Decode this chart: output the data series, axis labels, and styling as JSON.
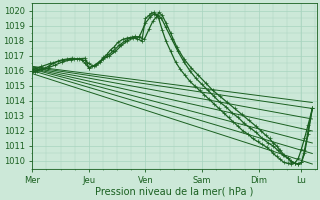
{
  "xlabel": "Pression niveau de la mer( hPa )",
  "xlim": [
    0,
    4.72
  ],
  "ylim": [
    1009.5,
    1020.5
  ],
  "yticks": [
    1010,
    1011,
    1012,
    1013,
    1014,
    1015,
    1016,
    1017,
    1018,
    1019,
    1020
  ],
  "xtick_labels": [
    "Mer",
    "Jeu",
    "Ven",
    "Sam",
    "Dim",
    "Lu"
  ],
  "xtick_positions": [
    0.0,
    0.94,
    1.88,
    2.82,
    3.76,
    4.47
  ],
  "bg_color": "#cce8d8",
  "grid_color": "#a8d4bf",
  "line_color": "#1a6020",
  "fan_lines": [
    {
      "x0": 0.02,
      "y0": 1015.8,
      "x1": 4.65,
      "y1": 1009.8
    },
    {
      "x0": 0.02,
      "y0": 1016.0,
      "x1": 4.65,
      "y1": 1010.5
    },
    {
      "x0": 0.02,
      "y0": 1016.1,
      "x1": 4.65,
      "y1": 1011.2
    },
    {
      "x0": 0.02,
      "y0": 1016.15,
      "x1": 4.65,
      "y1": 1012.0
    },
    {
      "x0": 0.02,
      "y0": 1016.2,
      "x1": 4.65,
      "y1": 1012.8
    },
    {
      "x0": 0.02,
      "y0": 1016.25,
      "x1": 4.65,
      "y1": 1013.5
    },
    {
      "x0": 0.02,
      "y0": 1016.3,
      "x1": 4.65,
      "y1": 1013.9
    }
  ],
  "main_line": {
    "x": [
      0.0,
      0.04,
      0.08,
      0.12,
      0.16,
      0.22,
      0.28,
      0.35,
      0.42,
      0.5,
      0.58,
      0.66,
      0.74,
      0.82,
      0.88,
      0.94,
      1.0,
      1.06,
      1.12,
      1.18,
      1.24,
      1.3,
      1.36,
      1.42,
      1.5,
      1.58,
      1.66,
      1.74,
      1.82,
      1.88,
      1.94,
      1.98,
      2.02,
      2.06,
      2.1,
      2.16,
      2.22,
      2.3,
      2.38,
      2.46,
      2.54,
      2.62,
      2.7,
      2.78,
      2.86,
      2.94,
      3.02,
      3.1,
      3.18,
      3.26,
      3.34,
      3.42,
      3.5,
      3.58,
      3.66,
      3.74,
      3.82,
      3.9,
      3.96,
      4.0,
      4.06,
      4.12,
      4.18,
      4.24,
      4.3,
      4.36,
      4.42,
      4.47,
      4.52,
      4.58,
      4.65
    ],
    "y": [
      1015.9,
      1015.95,
      1016.0,
      1016.1,
      1016.15,
      1016.2,
      1016.35,
      1016.5,
      1016.65,
      1016.75,
      1016.8,
      1016.85,
      1016.8,
      1016.75,
      1016.5,
      1016.2,
      1016.3,
      1016.4,
      1016.6,
      1016.9,
      1017.1,
      1017.4,
      1017.6,
      1017.9,
      1018.1,
      1018.2,
      1018.25,
      1018.15,
      1018.0,
      1019.5,
      1019.7,
      1019.85,
      1019.9,
      1019.75,
      1019.5,
      1018.7,
      1018.0,
      1017.3,
      1016.6,
      1016.1,
      1015.7,
      1015.3,
      1015.0,
      1014.7,
      1014.4,
      1014.1,
      1013.8,
      1013.5,
      1013.2,
      1012.9,
      1012.6,
      1012.3,
      1012.0,
      1011.8,
      1011.5,
      1011.3,
      1011.1,
      1010.9,
      1010.7,
      1010.5,
      1010.3,
      1010.1,
      1009.9,
      1009.85,
      1009.8,
      1009.85,
      1010.2,
      1010.8,
      1011.5,
      1012.4,
      1013.5
    ]
  },
  "second_line": {
    "x": [
      0.02,
      0.08,
      0.16,
      0.26,
      0.38,
      0.5,
      0.64,
      0.78,
      0.88,
      0.94,
      1.02,
      1.1,
      1.18,
      1.28,
      1.38,
      1.48,
      1.58,
      1.68,
      1.78,
      1.88,
      1.96,
      2.02,
      2.08,
      2.14,
      2.22,
      2.32,
      2.42,
      2.52,
      2.62,
      2.72,
      2.82,
      2.92,
      3.02,
      3.12,
      3.22,
      3.32,
      3.42,
      3.52,
      3.62,
      3.72,
      3.82,
      3.92,
      4.0,
      4.08,
      4.16,
      4.24,
      4.3,
      4.36,
      4.42,
      4.47,
      4.52,
      4.58,
      4.65
    ],
    "y": [
      1016.0,
      1016.05,
      1016.1,
      1016.2,
      1016.4,
      1016.6,
      1016.75,
      1016.8,
      1016.7,
      1016.5,
      1016.3,
      1016.5,
      1016.8,
      1017.0,
      1017.3,
      1017.7,
      1018.0,
      1018.2,
      1018.3,
      1019.2,
      1019.6,
      1019.8,
      1019.7,
      1019.55,
      1018.9,
      1018.1,
      1017.3,
      1016.6,
      1016.0,
      1015.5,
      1015.1,
      1014.7,
      1014.3,
      1013.9,
      1013.6,
      1013.2,
      1012.9,
      1012.5,
      1012.2,
      1011.9,
      1011.5,
      1011.2,
      1011.0,
      1010.7,
      1010.4,
      1010.2,
      1009.95,
      1009.85,
      1009.8,
      1009.9,
      1010.5,
      1011.8,
      1013.5
    ]
  },
  "top_line": {
    "x": [
      0.02,
      0.15,
      0.3,
      0.5,
      0.7,
      0.88,
      0.94,
      1.04,
      1.14,
      1.24,
      1.34,
      1.44,
      1.54,
      1.62,
      1.7,
      1.78,
      1.86,
      1.94,
      2.0,
      2.06,
      2.1,
      2.16,
      2.22,
      2.3,
      2.4,
      2.52,
      2.64,
      2.76,
      2.88,
      3.0,
      3.12,
      3.24,
      3.36,
      3.48,
      3.6,
      3.72,
      3.8,
      3.88,
      3.94,
      4.0,
      4.06,
      4.12,
      4.18,
      4.24,
      4.3,
      4.36,
      4.42,
      4.47,
      4.52,
      4.58,
      4.65
    ],
    "y": [
      1016.1,
      1016.3,
      1016.5,
      1016.7,
      1016.8,
      1016.85,
      1016.2,
      1016.4,
      1016.7,
      1017.0,
      1017.3,
      1017.7,
      1018.0,
      1018.2,
      1018.3,
      1018.25,
      1018.1,
      1018.8,
      1019.3,
      1019.6,
      1019.9,
      1019.7,
      1019.2,
      1018.5,
      1017.6,
      1016.8,
      1016.2,
      1015.7,
      1015.2,
      1014.7,
      1014.3,
      1013.9,
      1013.5,
      1013.1,
      1012.7,
      1012.3,
      1012.0,
      1011.7,
      1011.5,
      1011.2,
      1011.0,
      1010.7,
      1010.4,
      1010.2,
      1010.0,
      1009.85,
      1009.8,
      1009.9,
      1010.7,
      1012.0,
      1013.5
    ]
  },
  "marker": "+",
  "marker_size": 3,
  "line_width": 0.9
}
